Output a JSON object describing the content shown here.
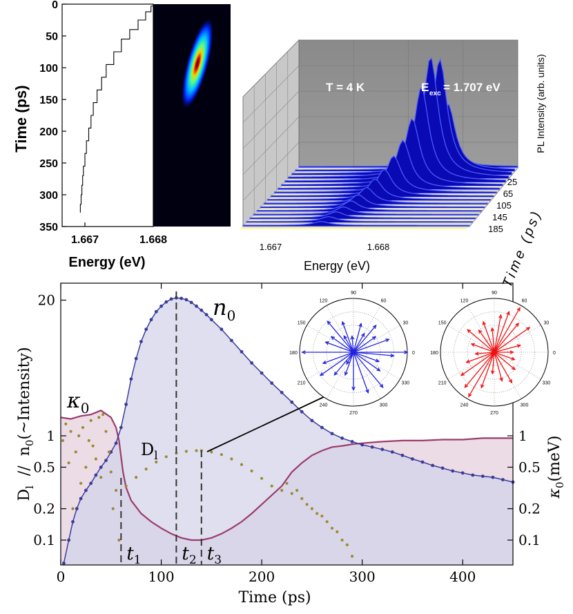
{
  "chart_data": [
    {
      "type": "line",
      "panel": "streak-energy-trace",
      "ylabel": "Time (ps)",
      "xlabel": "Energy (eV)",
      "x_ticks": [
        "1.667",
        "1.668"
      ],
      "y_ticks": [
        "0",
        "50",
        "100",
        "150",
        "200",
        "250",
        "300",
        "350"
      ],
      "ylim": [
        350,
        0
      ],
      "xlim": [
        1.6667,
        1.6679
      ],
      "y_inverted": true,
      "series": [
        {
          "x": [
            1.66791,
            1.66787,
            1.6678,
            1.6677,
            1.66759,
            1.66748,
            1.66738,
            1.66728,
            1.66722,
            1.66716,
            1.66711,
            1.66708,
            1.66705,
            1.66702,
            1.667,
            1.66698,
            1.66697,
            1.66696,
            1.66695,
            1.66694
          ],
          "y": [
            3,
            12,
            25,
            40,
            55,
            75,
            95,
            115,
            135,
            155,
            175,
            195,
            215,
            235,
            255,
            270,
            285,
            300,
            315,
            328
          ]
        }
      ]
    },
    {
      "type": "heatmap",
      "panel": "streak-image",
      "description_colors": [
        "#000010",
        "#0000ff",
        "#00ffff",
        "#ffff00",
        "#ff0000",
        "#400000"
      ]
    },
    {
      "type": "area",
      "panel": "3d-pl-spectra",
      "annotations": [
        "T = 4 K",
        "E",
        "exc",
        "= 1.707 eV"
      ],
      "xlabel": "Energy (eV)",
      "x_ticks": [
        "1.667",
        "1.668"
      ],
      "zlabel": "PL Intensity (arb. units)",
      "ylabel": "Time (ps)",
      "y_ticks": [
        "25",
        "65",
        "105",
        "145",
        "185"
      ],
      "times": [
        25,
        35,
        45,
        55,
        65,
        75,
        85,
        95,
        105,
        115,
        125,
        135,
        145,
        155,
        165,
        175,
        185
      ],
      "peak_energy": [
        1.66795,
        1.66793,
        1.66788,
        1.66782,
        1.66776,
        1.6677,
        1.66764,
        1.66758,
        1.66752,
        1.66746,
        1.66741,
        1.66736,
        1.66732,
        1.66728,
        1.66724,
        1.6672,
        1.66716
      ],
      "peak_intensity": [
        0.18,
        0.55,
        0.95,
        1.0,
        0.78,
        0.55,
        0.4,
        0.3,
        0.22,
        0.17,
        0.13,
        0.1,
        0.08,
        0.06,
        0.05,
        0.04,
        0.03
      ]
    },
    {
      "type": "line",
      "panel": "main-time-trace",
      "xlabel": "Time (ps)",
      "xlim": [
        0,
        450
      ],
      "x_ticks": [
        "0",
        "100",
        "200",
        "300",
        "400"
      ],
      "ylabel_left": "D",
      "ylabel_left_sub": "l",
      "ylabel_left_rest": "  //  n",
      "ylabel_left_sub2": "0",
      "ylabel_left_rest2": "(~Intensity)",
      "ylabel_right": "κ",
      "ylabel_right_sub": "0",
      "ylabel_right_rest": "(meV)",
      "y_ticks_left": [
        "20",
        "1",
        "0.5",
        "0.2",
        "0.1"
      ],
      "y_ticks_right": [
        "1",
        "0.5",
        "0.2",
        "0.1"
      ],
      "log_scale": true,
      "markers": [
        {
          "label": "t",
          "sub": "1",
          "x": 60
        },
        {
          "label": "t",
          "sub": "2",
          "x": 115
        },
        {
          "label": "t",
          "sub": "3",
          "x": 140
        }
      ],
      "series_labels": {
        "n0": {
          "label": "n",
          "sub": "0"
        },
        "kappa0": {
          "label": "κ",
          "sub": "0"
        },
        "D1": {
          "label": "D",
          "sub": "l"
        }
      },
      "series": [
        {
          "name": "n0",
          "color": "#3b3b9a",
          "fill": "#d4d4ea",
          "x": [
            3,
            8,
            12,
            16,
            20,
            25,
            30,
            35,
            40,
            45,
            50,
            55,
            60,
            65,
            70,
            75,
            80,
            85,
            90,
            95,
            100,
            105,
            110,
            115,
            120,
            125,
            130,
            135,
            140,
            145,
            150,
            160,
            170,
            180,
            190,
            200,
            210,
            220,
            230,
            240,
            250,
            260,
            270,
            280,
            290,
            300,
            310,
            320,
            330,
            340,
            350,
            360,
            370,
            380,
            390,
            400,
            410,
            420,
            430,
            440,
            450
          ],
          "y": [
            0.06,
            0.1,
            0.15,
            0.2,
            0.25,
            0.3,
            0.35,
            0.42,
            0.5,
            0.58,
            0.7,
            0.85,
            1.2,
            2.0,
            3.5,
            5.5,
            8.0,
            10.5,
            13.0,
            15.5,
            17.5,
            19.2,
            20.5,
            21.0,
            20.8,
            20.2,
            19.0,
            17.5,
            16.0,
            14.5,
            13.0,
            10.5,
            8.2,
            6.4,
            5.0,
            4.0,
            3.2,
            2.6,
            2.1,
            1.7,
            1.4,
            1.2,
            1.05,
            0.95,
            0.88,
            0.82,
            0.78,
            0.74,
            0.7,
            0.65,
            0.6,
            0.56,
            0.52,
            0.49,
            0.46,
            0.44,
            0.42,
            0.41,
            0.4,
            0.38,
            0.36
          ]
        },
        {
          "name": "kappa0",
          "color": "#9b3b6b",
          "fill": "#e9d6e2",
          "x": [
            0,
            10,
            20,
            30,
            40,
            50,
            55,
            58,
            62,
            65,
            70,
            80,
            90,
            100,
            110,
            120,
            130,
            140,
            150,
            160,
            170,
            180,
            190,
            200,
            210,
            220,
            230,
            240,
            250,
            260,
            270,
            280,
            290,
            300,
            320,
            340,
            360,
            380,
            400,
            420,
            440,
            450
          ],
          "y": [
            1.5,
            1.45,
            1.55,
            1.6,
            1.75,
            1.5,
            1.2,
            0.9,
            0.45,
            0.32,
            0.24,
            0.18,
            0.15,
            0.13,
            0.115,
            0.105,
            0.1,
            0.1,
            0.105,
            0.115,
            0.13,
            0.15,
            0.18,
            0.22,
            0.27,
            0.33,
            0.45,
            0.55,
            0.65,
            0.72,
            0.78,
            0.8,
            0.83,
            0.85,
            0.88,
            0.9,
            0.9,
            0.92,
            0.92,
            0.95,
            0.95,
            0.95
          ]
        },
        {
          "name": "D1",
          "color": "#9a8a30",
          "x": [
            65,
            75,
            85,
            95,
            105,
            115,
            125,
            135,
            140,
            150,
            160,
            170,
            180,
            190,
            200,
            210,
            220,
            225,
            230,
            235,
            240,
            245,
            250,
            255,
            260,
            265,
            270,
            275,
            280,
            285,
            290
          ],
          "y": [
            0.33,
            0.4,
            0.48,
            0.56,
            0.63,
            0.68,
            0.71,
            0.72,
            0.72,
            0.7,
            0.66,
            0.6,
            0.53,
            0.46,
            0.39,
            0.33,
            0.3,
            0.35,
            0.28,
            0.3,
            0.25,
            0.22,
            0.2,
            0.18,
            0.17,
            0.15,
            0.13,
            0.12,
            0.1,
            0.09,
            0.07
          ]
        },
        {
          "name": "D1-early-scatter",
          "color": "#9a8a30",
          "x": [
            2,
            5,
            8,
            10,
            12,
            15,
            18,
            20,
            22,
            25,
            28,
            30,
            32,
            35,
            38,
            40,
            42,
            45,
            48,
            50,
            52,
            55,
            58
          ],
          "y": [
            0.9,
            1.3,
            0.55,
            1.1,
            0.2,
            0.7,
            1.0,
            0.35,
            1.2,
            0.5,
            0.9,
            1.4,
            0.8,
            0.6,
            1.5,
            0.4,
            1.6,
            1.1,
            0.7,
            0.45,
            0.2,
            0.3,
            0.1
          ]
        }
      ]
    },
    {
      "type": "scatter",
      "panel": "polar-inset-blue",
      "color": "#2222dd",
      "angle_ticks": [
        "90",
        "60",
        "30",
        "0",
        "330",
        "300",
        "270",
        "240",
        "210",
        "180",
        "150",
        "120"
      ],
      "arrow_angles_deg": [
        0,
        20,
        35,
        50,
        75,
        95,
        110,
        130,
        145,
        160,
        180,
        200,
        215,
        230,
        250,
        270,
        290,
        310,
        325,
        340,
        355,
        60,
        120,
        240
      ],
      "arrow_lengths": [
        1.0,
        0.7,
        0.5,
        0.65,
        0.55,
        0.3,
        0.6,
        0.75,
        0.5,
        0.55,
        0.95,
        0.6,
        0.75,
        0.55,
        0.45,
        0.7,
        0.8,
        0.85,
        0.6,
        0.5,
        0.75,
        0.4,
        0.35,
        0.25
      ]
    },
    {
      "type": "scatter",
      "panel": "polar-inset-red",
      "color": "#ee1111",
      "angle_ticks": [
        "90",
        "60",
        "30",
        "0",
        "330",
        "300",
        "270",
        "240",
        "210",
        "180",
        "150",
        "120"
      ],
      "arrow_angles_deg": [
        0,
        15,
        35,
        50,
        60,
        70,
        80,
        95,
        110,
        125,
        140,
        160,
        185,
        200,
        215,
        230,
        240,
        250,
        265,
        285,
        300,
        320,
        340
      ],
      "arrow_lengths": [
        0.35,
        0.5,
        0.8,
        0.7,
        0.95,
        0.8,
        0.7,
        0.45,
        0.6,
        0.5,
        0.65,
        0.45,
        0.35,
        0.55,
        0.75,
        0.85,
        0.95,
        0.7,
        0.4,
        0.55,
        0.65,
        0.5,
        0.4
      ]
    }
  ]
}
